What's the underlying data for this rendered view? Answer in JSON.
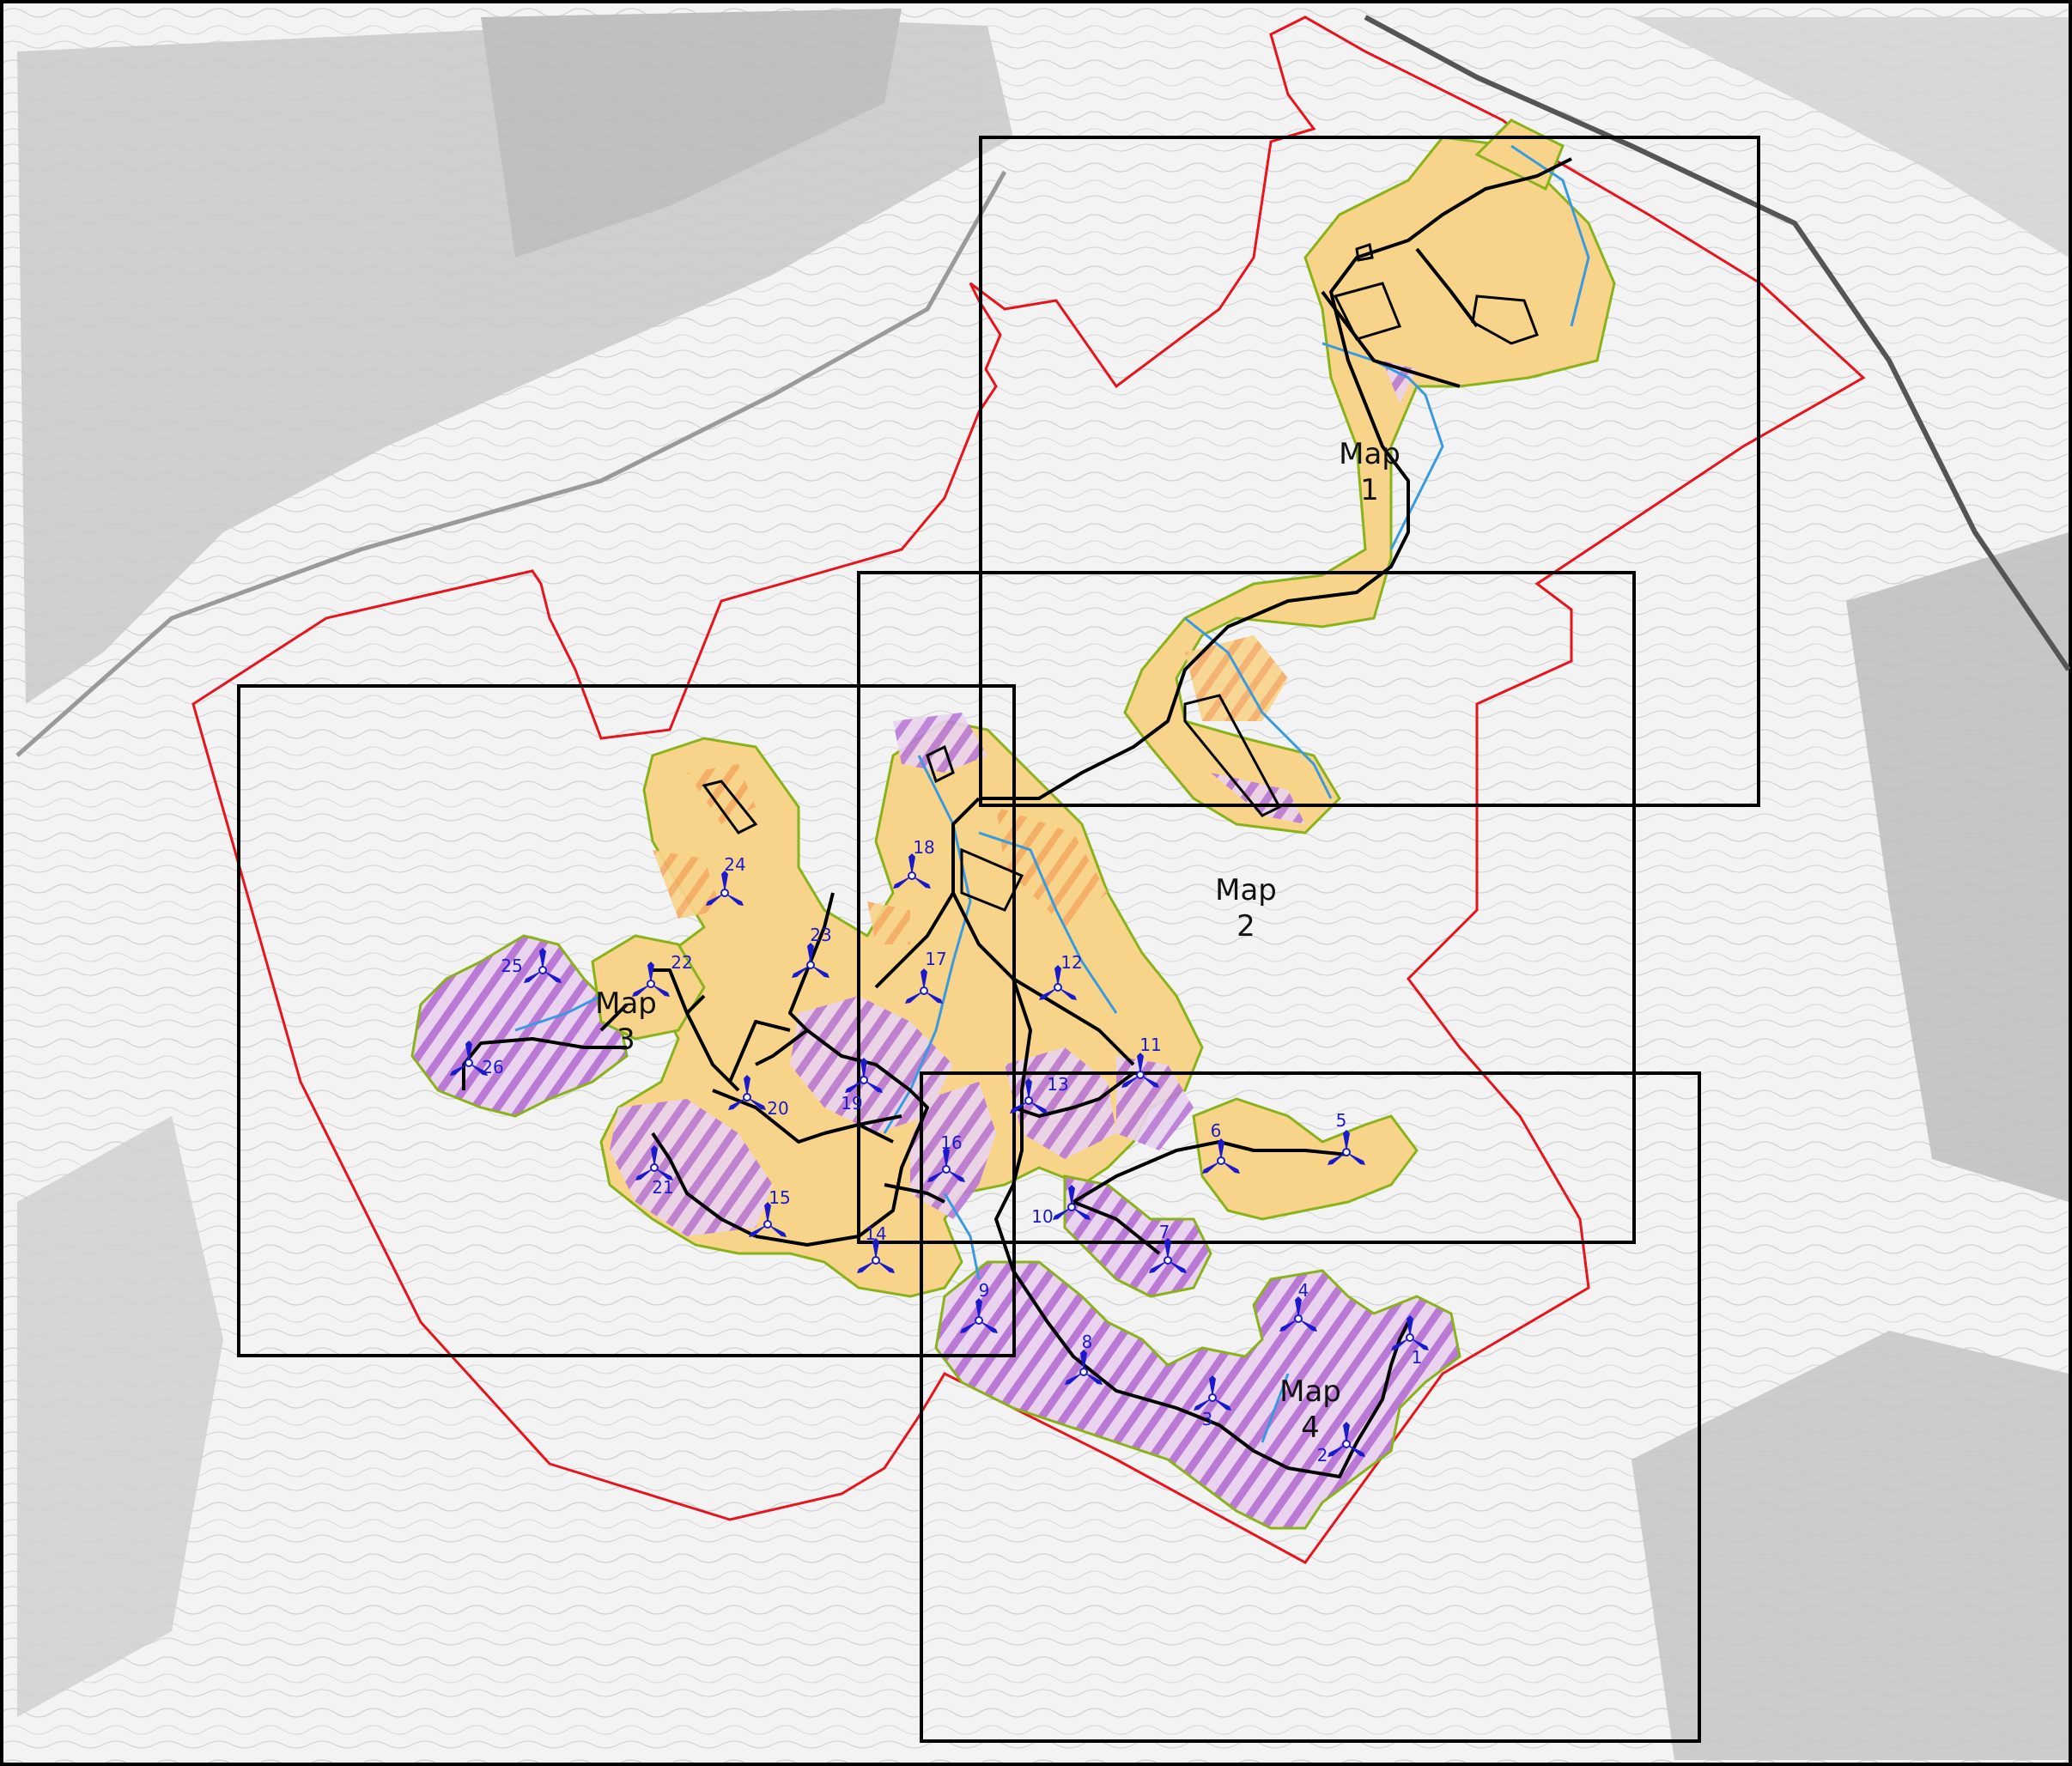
{
  "colors": {
    "boundary": "#e8141c",
    "buffer_fill": "#f8d48a",
    "buffer_edge": "#8ab21a",
    "hatch": "#b06ad0",
    "hatch_orange": "#f2a25a",
    "road": "#000000",
    "stream": "#3a9ae0",
    "turbine": "#1a1acc",
    "frame": "#000000"
  },
  "map_frames": [
    {
      "word": "Map",
      "num": "1"
    },
    {
      "word": "Map",
      "num": "2"
    },
    {
      "word": "Map",
      "num": "3"
    },
    {
      "word": "Map",
      "num": "4"
    }
  ],
  "turbines": [
    {
      "id": "1"
    },
    {
      "id": "2"
    },
    {
      "id": "3"
    },
    {
      "id": "4"
    },
    {
      "id": "5"
    },
    {
      "id": "6"
    },
    {
      "id": "7"
    },
    {
      "id": "8"
    },
    {
      "id": "9"
    },
    {
      "id": "10"
    },
    {
      "id": "11"
    },
    {
      "id": "12"
    },
    {
      "id": "13"
    },
    {
      "id": "14"
    },
    {
      "id": "15"
    },
    {
      "id": "16"
    },
    {
      "id": "17"
    },
    {
      "id": "18"
    },
    {
      "id": "19"
    },
    {
      "id": "20"
    },
    {
      "id": "21"
    },
    {
      "id": "22"
    },
    {
      "id": "23"
    },
    {
      "id": "24"
    },
    {
      "id": "25"
    },
    {
      "id": "26"
    }
  ],
  "icons": {
    "turbine": "wind-turbine-icon"
  }
}
